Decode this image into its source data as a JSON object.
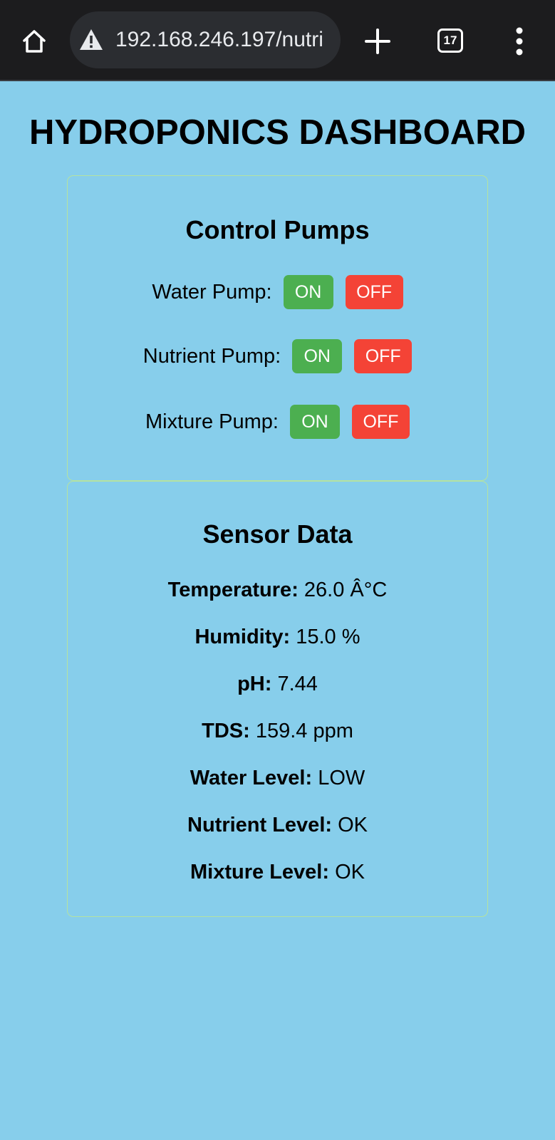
{
  "browser": {
    "url": "192.168.246.197/nutri",
    "tab_count": "17"
  },
  "page": {
    "title": "HYDROPONICS DASHBOARD"
  },
  "controls": {
    "heading": "Control Pumps",
    "pumps": [
      {
        "label": "Water Pump:",
        "on_label": "ON",
        "off_label": "OFF"
      },
      {
        "label": "Nutrient Pump:",
        "on_label": "ON",
        "off_label": "OFF"
      },
      {
        "label": "Mixture Pump:",
        "on_label": "ON",
        "off_label": "OFF"
      }
    ],
    "on_color": "#4caf50",
    "off_color": "#f44336"
  },
  "sensors": {
    "heading": "Sensor Data",
    "readings": [
      {
        "label": "Temperature:",
        "value": "26.0 Â°C"
      },
      {
        "label": "Humidity:",
        "value": "15.0 %"
      },
      {
        "label": "pH:",
        "value": "7.44"
      },
      {
        "label": "TDS:",
        "value": "159.4 ppm"
      },
      {
        "label": "Water Level:",
        "value": "LOW"
      },
      {
        "label": "Nutrient Level:",
        "value": "OK"
      },
      {
        "label": "Mixture Level:",
        "value": "OK"
      }
    ]
  },
  "colors": {
    "page_background": "#87ceeb",
    "browser_bar": "#1c1c1e",
    "card_border": "#b5e3a0"
  }
}
